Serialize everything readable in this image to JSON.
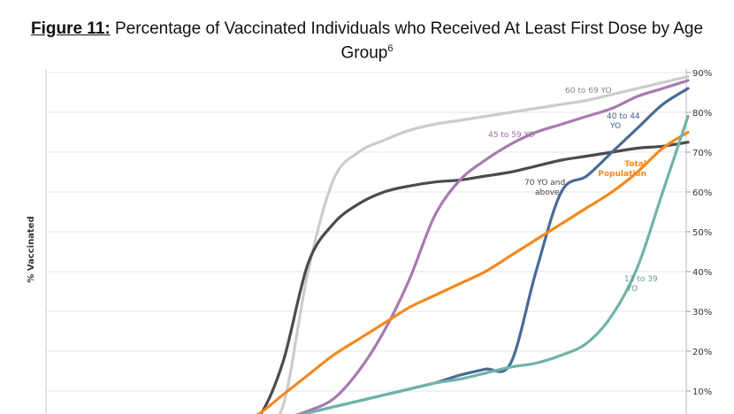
{
  "figure": {
    "label": "Figure 11:",
    "title": " Percentage of Vaccinated Individuals who Received At Least First Dose by Age",
    "title_line2": "Group",
    "footnote": "6"
  },
  "chart_data": {
    "type": "line",
    "title": "Figure 11: Percentage of Vaccinated Individuals who Received At Least First Dose by Age Group",
    "xlabel": "",
    "ylabel": "% Vaccinated",
    "ylim": [
      0,
      90
    ],
    "y_ticks": [
      "10%",
      "20%",
      "30%",
      "40%",
      "50%",
      "60%",
      "70%",
      "80%",
      "90%"
    ],
    "y_tick_values": [
      10,
      20,
      30,
      40,
      50,
      60,
      70,
      80,
      90
    ],
    "grid": true,
    "x": [
      0,
      5,
      10,
      15,
      20,
      25,
      30,
      35,
      40,
      45,
      50,
      55,
      60,
      65,
      70,
      75,
      80,
      85,
      90,
      95,
      100
    ],
    "series": [
      {
        "name": "60 to 69 YO",
        "color": "#cccccc",
        "values": [
          0,
          0,
          0.5,
          1.5,
          6,
          40,
          63,
          70,
          73,
          75.5,
          77,
          78,
          79,
          80,
          81,
          82,
          83,
          84.5,
          86,
          87.5,
          89
        ]
      },
      {
        "name": "70 YO and above",
        "color": "#4a4a50",
        "values": [
          0,
          0.2,
          1,
          3,
          17,
          42,
          52,
          57,
          60,
          61.5,
          62.5,
          63,
          64,
          65,
          66.5,
          68,
          69,
          70,
          71,
          71.5,
          72.5
        ]
      },
      {
        "name": "45 to 59 YO",
        "color": "#a87ab0",
        "values": [
          0,
          0.2,
          1,
          2,
          3,
          5,
          8,
          15,
          25,
          38,
          54,
          63,
          68,
          72,
          75,
          77,
          79,
          81,
          84,
          86,
          88
        ]
      },
      {
        "name": "40 to 44 YO",
        "color": "#4a6a95",
        "values": [
          0,
          0.2,
          1,
          2,
          3,
          4.5,
          6,
          7.5,
          9,
          10.5,
          12,
          14,
          15.5,
          17,
          40,
          60,
          64,
          70,
          76,
          82,
          86
        ]
      },
      {
        "name": "Total Population",
        "color": "#f28a1e",
        "values": [
          0,
          0.5,
          1.5,
          4,
          9,
          14,
          19,
          23,
          27,
          31,
          34,
          37,
          40,
          44,
          48,
          52,
          56,
          60,
          65,
          71,
          75
        ]
      },
      {
        "name": "12 to 39 YO",
        "color": "#6fb3aa",
        "values": [
          0,
          0.2,
          1,
          2,
          3,
          4.5,
          6,
          7.5,
          9,
          10.5,
          12,
          13,
          14.5,
          16,
          17,
          19,
          22,
          29,
          41,
          60,
          79
        ]
      }
    ],
    "annotations": [
      {
        "text": "60 to 69 YO",
        "series": "60 to 69 YO"
      },
      {
        "text": "40 to 44",
        "text2": "YO",
        "series": "40 to 44 YO"
      },
      {
        "text": "45 to 59 YO",
        "series": "45 to 59 YO"
      },
      {
        "text": "Total",
        "text2": "Population",
        "series": "Total Population"
      },
      {
        "text": "70 YO and",
        "text2": "above",
        "series": "70 YO and above"
      },
      {
        "text": "12 to 39",
        "text2": "YO",
        "series": "12 to 39 YO"
      }
    ]
  }
}
